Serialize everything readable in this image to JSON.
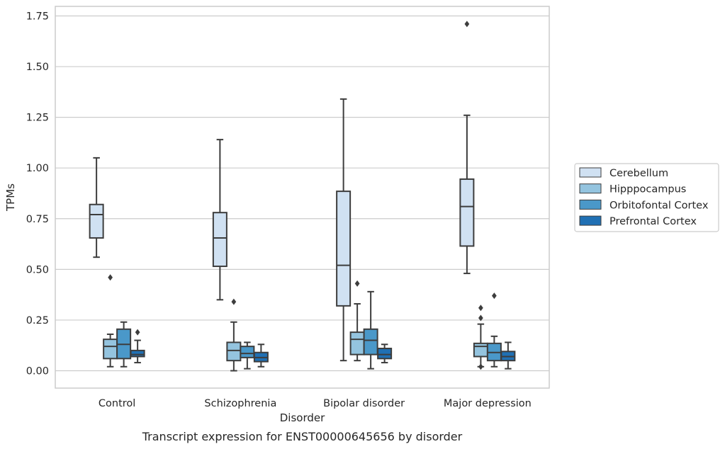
{
  "chart_data": {
    "type": "boxplot",
    "caption": "Transcript expression for ENST00000645656 by disorder",
    "xlabel": "Disorder",
    "ylabel": "TPMs",
    "categories": [
      "Control",
      "Schizophrenia",
      "Bipolar disorder",
      "Major depression"
    ],
    "ylim": [
      -0.08,
      1.8
    ],
    "yticks": [
      0.0,
      0.25,
      0.5,
      0.75,
      1.0,
      1.25,
      1.5,
      1.75
    ],
    "ytick_labels": [
      "0.00",
      "0.25",
      "0.50",
      "0.75",
      "1.00",
      "1.25",
      "1.50",
      "1.75"
    ],
    "grid": "horizontal",
    "legend_position": "right",
    "series": [
      {
        "name": "Cerebellum",
        "color": "#d0e1f2",
        "boxes": [
          {
            "whislo": 0.56,
            "q1": 0.655,
            "med": 0.77,
            "q3": 0.82,
            "whishi": 1.05,
            "fliers": []
          },
          {
            "whislo": 0.35,
            "q1": 0.515,
            "med": 0.655,
            "q3": 0.78,
            "whishi": 1.14,
            "fliers": []
          },
          {
            "whislo": 0.05,
            "q1": 0.32,
            "med": 0.52,
            "q3": 0.885,
            "whishi": 1.34,
            "fliers": []
          },
          {
            "whislo": 0.48,
            "q1": 0.615,
            "med": 0.81,
            "q3": 0.945,
            "whishi": 1.26,
            "fliers": [
              1.71
            ]
          }
        ]
      },
      {
        "name": "Hipppocampus",
        "color": "#94c4df",
        "boxes": [
          {
            "whislo": 0.02,
            "q1": 0.06,
            "med": 0.12,
            "q3": 0.155,
            "whishi": 0.18,
            "fliers": [
              0.46
            ]
          },
          {
            "whislo": 0.0,
            "q1": 0.05,
            "med": 0.1,
            "q3": 0.14,
            "whishi": 0.24,
            "fliers": [
              0.34
            ]
          },
          {
            "whislo": 0.05,
            "q1": 0.08,
            "med": 0.155,
            "q3": 0.19,
            "whishi": 0.33,
            "fliers": [
              0.43
            ]
          },
          {
            "whislo": 0.02,
            "q1": 0.07,
            "med": 0.12,
            "q3": 0.135,
            "whishi": 0.23,
            "fliers": [
              0.26,
              0.31,
              0.02
            ]
          }
        ]
      },
      {
        "name": "Orbitofontal Cortex",
        "color": "#4a98c9",
        "boxes": [
          {
            "whislo": 0.02,
            "q1": 0.06,
            "med": 0.13,
            "q3": 0.205,
            "whishi": 0.24,
            "fliers": []
          },
          {
            "whislo": 0.01,
            "q1": 0.065,
            "med": 0.085,
            "q3": 0.12,
            "whishi": 0.14,
            "fliers": []
          },
          {
            "whislo": 0.01,
            "q1": 0.08,
            "med": 0.15,
            "q3": 0.205,
            "whishi": 0.39,
            "fliers": []
          },
          {
            "whislo": 0.02,
            "q1": 0.05,
            "med": 0.09,
            "q3": 0.135,
            "whishi": 0.17,
            "fliers": [
              0.37
            ]
          }
        ]
      },
      {
        "name": "Prefrontal Cortex",
        "color": "#2070b4",
        "boxes": [
          {
            "whislo": 0.04,
            "q1": 0.07,
            "med": 0.08,
            "q3": 0.1,
            "whishi": 0.15,
            "fliers": [
              0.19
            ]
          },
          {
            "whislo": 0.02,
            "q1": 0.045,
            "med": 0.065,
            "q3": 0.09,
            "whishi": 0.13,
            "fliers": []
          },
          {
            "whislo": 0.04,
            "q1": 0.06,
            "med": 0.08,
            "q3": 0.11,
            "whishi": 0.13,
            "fliers": []
          },
          {
            "whislo": 0.01,
            "q1": 0.05,
            "med": 0.07,
            "q3": 0.095,
            "whishi": 0.14,
            "fliers": []
          }
        ]
      }
    ]
  }
}
